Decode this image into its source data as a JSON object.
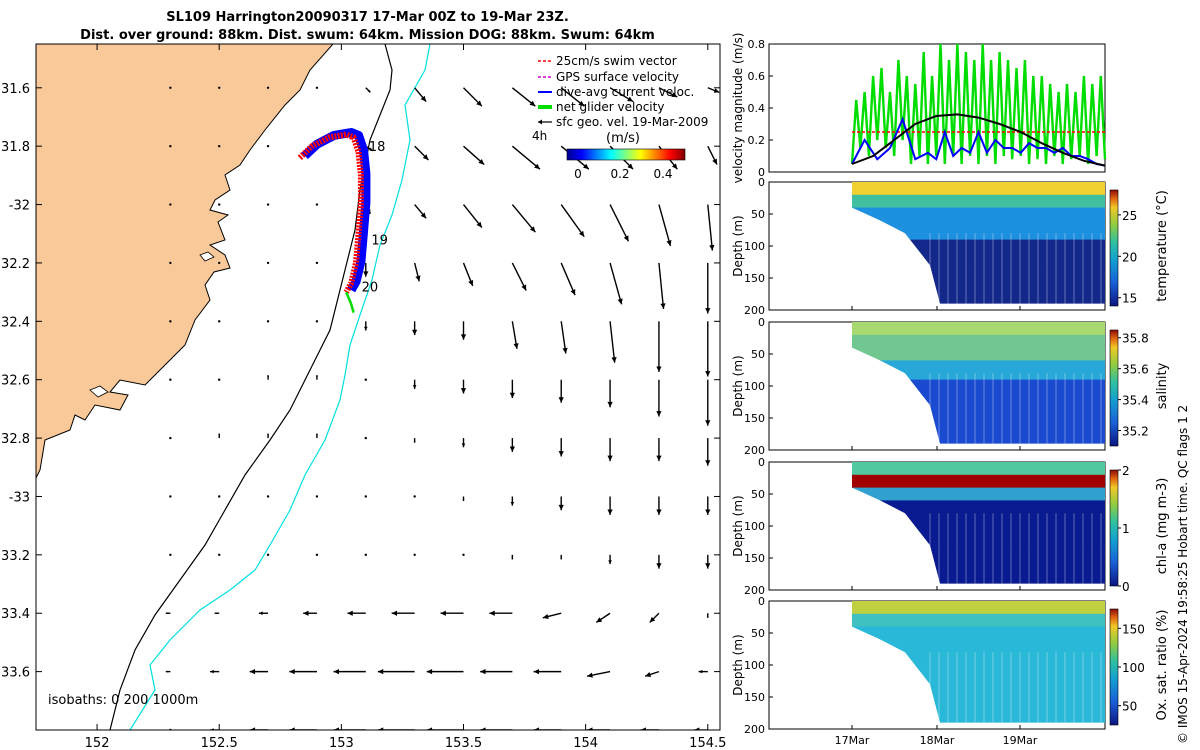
{
  "title": {
    "line1": "SL109 Harrington20090317 17-Mar 00Z to 19-Mar 23Z.",
    "line2": "Dist. over ground: 88km. Dist. swum: 64km. Mission DOG: 88km. Swum: 64km"
  },
  "credit": "© IMOS 15-Apr-2024 19:58:25 Hobart time. QC flags 1  2",
  "colors": {
    "land": "#f9c999",
    "shelf_isobath": "#00e0e0",
    "coast_isobath": "#000000",
    "glider_red": "#ff0000",
    "glider_blue": "#0000ff",
    "glider_green": "#00dd00"
  },
  "chart_data": [
    {
      "type": "map",
      "xlim": [
        151.75,
        154.55
      ],
      "ylim": [
        -33.8,
        -31.45
      ],
      "x_ticks": [
        152,
        152.5,
        153,
        153.5,
        154,
        154.5
      ],
      "y_ticks": [
        -31.6,
        -31.8,
        -32,
        -32.2,
        -32.4,
        -32.6,
        -32.8,
        -33,
        -33.2,
        -33.4,
        -33.6
      ],
      "x_tick_labels": [
        "152",
        "152.5",
        "153",
        "153.5",
        "154",
        "154.5"
      ],
      "y_tick_labels": [
        "31.6",
        "31.8",
        "-32",
        "32.2",
        "32.4",
        "32.6",
        "32.8",
        "-33",
        "33.2",
        "33.4",
        "33.6"
      ],
      "legend": [
        {
          "label": "25cm/s swim vector",
          "color": "#ff0000",
          "style": "dash"
        },
        {
          "label": "GPS surface velocity",
          "color": "#cc00cc",
          "style": "dash"
        },
        {
          "label": "dive-avg current veloc.",
          "color": "#0000ff",
          "style": "solid"
        },
        {
          "label": "net glider velocity",
          "color": "#00dd00",
          "style": "thick"
        },
        {
          "label": "sfc geo. vel. 19-Mar-2009",
          "color": "#000000",
          "style": "arrow"
        }
      ],
      "legend_placement": "top-right",
      "colorbar": {
        "label": "(m/s)",
        "ticks": [
          "0",
          "0.2",
          "0.4"
        ],
        "range": [
          0,
          0.5
        ]
      },
      "scale_label": "4h",
      "day_labels": [
        {
          "text": "18",
          "lon": 153.08,
          "lat": -31.8
        },
        {
          "text": "19",
          "lon": 153.09,
          "lat": -32.12
        },
        {
          "text": "20",
          "lon": 153.05,
          "lat": -32.28
        }
      ],
      "isobath_label": "isobaths: 0   200  1000m",
      "track": {
        "lon": [
          152.83,
          152.88,
          152.95,
          153.02,
          153.05,
          153.07,
          153.08,
          153.08,
          153.07,
          153.06,
          153.04,
          153.02
        ],
        "lat": [
          -31.84,
          -31.8,
          -31.77,
          -31.76,
          -31.77,
          -31.82,
          -31.9,
          -32.0,
          -32.1,
          -32.2,
          -32.27,
          -32.3
        ]
      },
      "net_velocity": {
        "lon": [
          153.02,
          153.04,
          153.05
        ],
        "lat": [
          -32.3,
          -32.34,
          -32.37
        ]
      },
      "geostrophic_velocity": {
        "lon": [
          152.3,
          152.5,
          152.7,
          152.9,
          153.1,
          153.3,
          153.5,
          153.7,
          153.9,
          154.1,
          154.3,
          154.5
        ],
        "lat": [
          -31.6,
          -31.8,
          -32.0,
          -32.2,
          -32.4,
          -32.6,
          -32.8,
          -33.0,
          -33.2,
          -33.4,
          -33.6,
          -33.8
        ],
        "u": [
          [
            0,
            0,
            0,
            0,
            0.02,
            0.05,
            0.08,
            0.1,
            0.1,
            0.1,
            0.08,
            0.05
          ],
          [
            0,
            0,
            0,
            0,
            0.03,
            0.06,
            0.09,
            0.12,
            0.12,
            0.1,
            0.08,
            0.04
          ],
          [
            0,
            0,
            0,
            0,
            0.02,
            0.05,
            0.08,
            0.1,
            0.1,
            0.08,
            0.05,
            0.02
          ],
          [
            0,
            0,
            0,
            0,
            0.0,
            0.02,
            0.04,
            0.06,
            0.06,
            0.05,
            0.02,
            0.0
          ],
          [
            0,
            0,
            0,
            0,
            0.0,
            0.0,
            0.0,
            0.02,
            0.02,
            0.02,
            0.0,
            0.0
          ],
          [
            0,
            0,
            0.0,
            0,
            0.0,
            0.0,
            0.0,
            0.0,
            0.0,
            0.0,
            0.0,
            0.0
          ],
          [
            0,
            0,
            0.0,
            0,
            0.0,
            0.0,
            0.0,
            0.0,
            0.0,
            0.0,
            0.0,
            0.0
          ],
          [
            0,
            0.0,
            0.0,
            0.0,
            0.0,
            0.0,
            0.0,
            0.0,
            0.0,
            0.0,
            0.0,
            0.0
          ],
          [
            0.0,
            0.0,
            0.0,
            0.0,
            0.0,
            0.0,
            0.0,
            0.0,
            0.0,
            0.0,
            0.0,
            0.0
          ],
          [
            -0.02,
            -0.02,
            -0.04,
            -0.06,
            -0.08,
            -0.1,
            -0.1,
            -0.1,
            -0.08,
            -0.06,
            -0.04,
            0.0
          ],
          [
            -0.02,
            -0.04,
            -0.08,
            -0.12,
            -0.14,
            -0.16,
            -0.16,
            -0.14,
            -0.12,
            -0.1,
            -0.06,
            -0.04
          ],
          [
            0,
            -0.04,
            -0.08,
            -0.12,
            -0.14,
            -0.16,
            -0.16,
            -0.14,
            -0.12,
            -0.1,
            -0.08,
            -0.06
          ]
        ],
        "v": [
          [
            0,
            0,
            0,
            0,
            -0.02,
            -0.06,
            -0.08,
            -0.08,
            -0.08,
            -0.06,
            -0.04,
            -0.02
          ],
          [
            0,
            0,
            0,
            0,
            -0.02,
            -0.06,
            -0.08,
            -0.1,
            -0.1,
            -0.1,
            -0.1,
            -0.08
          ],
          [
            0,
            0,
            0,
            0,
            -0.04,
            -0.06,
            -0.1,
            -0.12,
            -0.14,
            -0.16,
            -0.18,
            -0.2
          ],
          [
            0,
            0,
            0,
            0,
            -0.06,
            -0.08,
            -0.1,
            -0.12,
            -0.14,
            -0.18,
            -0.2,
            -0.22
          ],
          [
            0,
            0,
            0,
            0,
            -0.04,
            -0.06,
            -0.08,
            -0.12,
            -0.14,
            -0.18,
            -0.22,
            -0.24
          ],
          [
            0,
            0,
            0.02,
            0.02,
            0,
            -0.04,
            -0.06,
            -0.08,
            -0.1,
            -0.12,
            -0.16,
            -0.2
          ],
          [
            0,
            0.02,
            0.02,
            0.02,
            0,
            -0.02,
            -0.04,
            -0.06,
            -0.08,
            -0.1,
            -0.1,
            -0.12
          ],
          [
            0,
            0,
            0,
            0,
            0,
            0,
            -0.02,
            -0.04,
            -0.06,
            -0.08,
            -0.08,
            -0.08
          ],
          [
            0,
            0,
            0,
            0,
            0,
            0,
            0,
            -0.02,
            -0.02,
            -0.04,
            -0.06,
            -0.06
          ],
          [
            0,
            0,
            0,
            0,
            0,
            0,
            0,
            0,
            -0.02,
            -0.04,
            -0.04,
            -0.02
          ],
          [
            0,
            0,
            0,
            0,
            0,
            0,
            0,
            0,
            0,
            -0.02,
            -0.02,
            0.0
          ],
          [
            0,
            0,
            0,
            0,
            0,
            0,
            0,
            0,
            0,
            0,
            0.0,
            0.0
          ]
        ]
      }
    },
    {
      "type": "line",
      "ylabel": "velocity magnitude (m/s)",
      "ylim": [
        0,
        0.8
      ],
      "y_ticks": [
        "0",
        "0.2",
        "0.4",
        "0.6",
        "0.8"
      ],
      "x_range_days": [
        0,
        3
      ],
      "series": [
        {
          "name": "net glider velocity",
          "color": "#00dd00",
          "x": [
            0.0,
            0.05,
            0.1,
            0.15,
            0.2,
            0.25,
            0.3,
            0.35,
            0.4,
            0.45,
            0.5,
            0.55,
            0.6,
            0.65,
            0.7,
            0.75,
            0.8,
            0.85,
            0.9,
            0.95,
            1.0,
            1.05,
            1.1,
            1.15,
            1.2,
            1.25,
            1.3,
            1.35,
            1.4,
            1.45,
            1.5,
            1.55,
            1.6,
            1.65,
            1.7,
            1.75,
            1.8,
            1.85,
            1.9,
            1.95,
            2.0,
            2.05,
            2.1,
            2.15,
            2.2,
            2.25,
            2.3,
            2.35,
            2.4,
            2.45,
            2.5,
            2.55,
            2.6,
            2.65,
            2.7,
            2.75,
            2.8,
            2.85,
            2.9,
            2.95,
            3.0
          ],
          "values": [
            0.05,
            0.45,
            0.15,
            0.5,
            0.1,
            0.6,
            0.2,
            0.65,
            0.15,
            0.5,
            0.1,
            0.7,
            0.2,
            0.6,
            0.05,
            0.55,
            0.1,
            0.75,
            0.05,
            0.6,
            0.1,
            0.8,
            0.05,
            0.7,
            0.1,
            0.8,
            0.05,
            0.75,
            0.1,
            0.7,
            0.05,
            0.8,
            0.1,
            0.7,
            0.05,
            0.75,
            0.1,
            0.7,
            0.08,
            0.65,
            0.1,
            0.7,
            0.05,
            0.6,
            0.08,
            0.6,
            0.05,
            0.55,
            0.1,
            0.5,
            0.05,
            0.55,
            0.08,
            0.5,
            0.1,
            0.6,
            0.05,
            0.55,
            0.1,
            0.6,
            0.08
          ]
        },
        {
          "name": "25cm/s swim vector",
          "color": "#ff0000",
          "x": [
            0.0,
            3.0
          ],
          "values": [
            0.25,
            0.25
          ]
        },
        {
          "name": "dive-avg current veloc.",
          "color": "#0000ff",
          "x": [
            0.0,
            0.15,
            0.3,
            0.45,
            0.6,
            0.75,
            0.9,
            1.0,
            1.1,
            1.2,
            1.3,
            1.4,
            1.5,
            1.6,
            1.7,
            1.8,
            1.9,
            2.0,
            2.1,
            2.2,
            2.3,
            2.4,
            2.5,
            2.6,
            2.7,
            2.8,
            2.9,
            3.0
          ],
          "values": [
            0.05,
            0.2,
            0.08,
            0.15,
            0.33,
            0.08,
            0.12,
            0.08,
            0.25,
            0.1,
            0.15,
            0.12,
            0.25,
            0.12,
            0.2,
            0.15,
            0.15,
            0.12,
            0.18,
            0.15,
            0.15,
            0.12,
            0.15,
            0.1,
            0.1,
            0.08,
            0.05,
            0.04
          ]
        },
        {
          "name": "sfc geo. vel.",
          "color": "#000000",
          "x": [
            0.0,
            0.25,
            0.5,
            0.75,
            1.0,
            1.25,
            1.5,
            1.75,
            2.0,
            2.25,
            2.5,
            2.75,
            3.0
          ],
          "values": [
            0.05,
            0.1,
            0.2,
            0.3,
            0.35,
            0.36,
            0.34,
            0.3,
            0.25,
            0.18,
            0.12,
            0.07,
            0.04
          ]
        }
      ]
    },
    {
      "type": "heatmap",
      "ylabel": "Depth (m)",
      "clabel": "temperature (°C)",
      "ylim": [
        0,
        200
      ],
      "y_ticks": [
        "0",
        "50",
        "100",
        "150",
        "200"
      ],
      "cticks": [
        "15",
        "20",
        "25"
      ],
      "crange": [
        14,
        28
      ]
    },
    {
      "type": "heatmap",
      "ylabel": "Depth (m)",
      "clabel": "salinity",
      "ylim": [
        0,
        200
      ],
      "y_ticks": [
        "0",
        "50",
        "100",
        "150",
        "200"
      ],
      "cticks": [
        "35.2",
        "35.4",
        "35.6",
        "35.8"
      ],
      "crange": [
        35.1,
        35.85
      ]
    },
    {
      "type": "heatmap",
      "ylabel": "Depth (m)",
      "clabel": "chl-a (mg m-3)",
      "ylim": [
        0,
        200
      ],
      "y_ticks": [
        "0",
        "50",
        "100",
        "150",
        "200"
      ],
      "cticks": [
        "0",
        "1",
        "2"
      ],
      "crange": [
        0,
        2
      ]
    },
    {
      "type": "heatmap",
      "ylabel": "Depth (m)",
      "clabel": "Ox. sat. ratio (%)",
      "ylim": [
        0,
        200
      ],
      "y_ticks": [
        "0",
        "50",
        "100",
        "150",
        "200"
      ],
      "cticks": [
        "50",
        "100",
        "150"
      ],
      "crange": [
        25,
        175
      ],
      "x_tick_labels": [
        "17Mar",
        "18Mar",
        "19Mar"
      ]
    }
  ]
}
